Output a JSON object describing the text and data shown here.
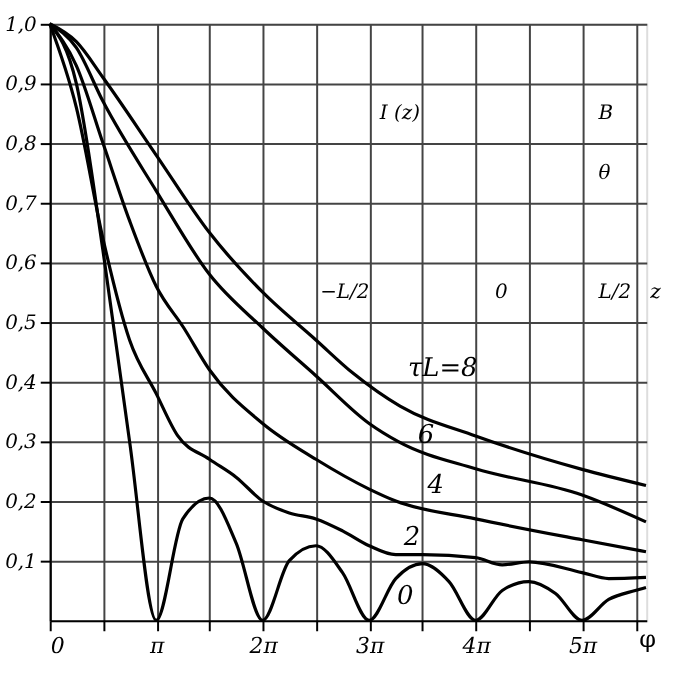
{
  "chart_data": {
    "type": "line",
    "xlabel": "φ",
    "xlim": [
      0,
      17.6
    ],
    "ylim": [
      0,
      1.0
    ],
    "xticks": [
      0,
      {
        "value": 1.571,
        "label": null
      },
      {
        "value": 3.142,
        "label": "π"
      },
      {
        "value": 4.712,
        "label": null
      },
      {
        "value": 6.283,
        "label": "2π"
      },
      {
        "value": 7.854,
        "label": null
      },
      {
        "value": 9.425,
        "label": "3π"
      },
      {
        "value": 10.996,
        "label": null
      },
      {
        "value": 12.566,
        "label": "4π"
      },
      {
        "value": 14.137,
        "label": null
      },
      {
        "value": 15.708,
        "label": "5π"
      },
      {
        "value": 17.279,
        "label": null
      }
    ],
    "yticks": [
      {
        "value": 0.1,
        "label": "0,1"
      },
      {
        "value": 0.2,
        "label": "0,2"
      },
      {
        "value": 0.3,
        "label": "0,3"
      },
      {
        "value": 0.4,
        "label": "0,4"
      },
      {
        "value": 0.5,
        "label": "0,5"
      },
      {
        "value": 0.6,
        "label": "0,6"
      },
      {
        "value": 0.7,
        "label": "0,7"
      },
      {
        "value": 0.8,
        "label": "0,8"
      },
      {
        "value": 0.9,
        "label": "0,9"
      },
      {
        "value": 1.0,
        "label": "1,0"
      }
    ],
    "grid": true,
    "marker": "none",
    "line_style": "solid",
    "series": [
      {
        "name": "τL=8",
        "color": "#000000",
        "x": [
          0,
          0.785,
          1.571,
          3.142,
          4.712,
          6.283,
          7.854,
          8.954,
          10.336,
          12.566,
          15.708,
          17.593
        ],
        "values": [
          1,
          0.97,
          0.91,
          0.78,
          0.65,
          0.55,
          0.47,
          0.414,
          0.359,
          0.309,
          0.253,
          0.226
        ]
      },
      {
        "name": "6",
        "color": "#000000",
        "x": [
          0,
          0.785,
          1.571,
          3.142,
          4.712,
          6.283,
          7.854,
          9.425,
          10.273,
          12.566,
          15.708,
          17.593
        ],
        "values": [
          1,
          0.96,
          0.87,
          0.72,
          0.58,
          0.49,
          0.41,
          0.33,
          0.3,
          0.254,
          0.21,
          0.165
        ]
      },
      {
        "name": "4",
        "color": "#000000",
        "x": [
          0,
          0.785,
          1.571,
          2.356,
          3.142,
          3.958,
          4.712,
          6.283,
          7.854,
          9.425,
          10.21,
          12.566,
          15.708,
          17.593
        ],
        "values": [
          1,
          0.93,
          0.8,
          0.67,
          0.56,
          0.49,
          0.42,
          0.33,
          0.27,
          0.22,
          0.2,
          0.17,
          0.135,
          0.115
        ]
      },
      {
        "name": "2",
        "color": "#000000",
        "x": [
          0,
          0.785,
          1.571,
          2.356,
          3.142,
          3.77,
          4.712,
          5.498,
          6.283,
          7.069,
          7.854,
          8.639,
          9.425,
          10.21,
          10.996,
          12.566,
          13.352,
          14.137,
          15.708,
          16.493,
          17.593
        ],
        "values": [
          1,
          0.86,
          0.64,
          0.47,
          0.38,
          0.31,
          0.27,
          0.24,
          0.2,
          0.18,
          0.17,
          0.15,
          0.125,
          0.11,
          0.11,
          0.105,
          0.093,
          0.098,
          0.08,
          0.07,
          0.072
        ]
      },
      {
        "name": "0",
        "color": "#000000",
        "x": [
          0,
          0.785,
          1.571,
          2.356,
          3.142,
          3.927,
          4.712,
          5.498,
          6.283,
          7.069,
          7.854,
          8.639,
          9.425,
          10.21,
          10.996,
          11.781,
          12.566,
          13.352,
          14.137,
          14.923,
          15.708,
          16.493,
          17.279,
          17.593
        ],
        "values": [
          1,
          0.9,
          0.62,
          0.3,
          0,
          0.17,
          0.205,
          0.13,
          0,
          0.1,
          0.125,
          0.08,
          0,
          0.07,
          0.095,
          0.065,
          0,
          0.05,
          0.065,
          0.045,
          0,
          0.035,
          0.05,
          0.055
        ]
      }
    ],
    "annotations": [
      "I (z)",
      "B",
      "θ",
      "−L/2",
      "0",
      "L/2",
      "z"
    ]
  }
}
